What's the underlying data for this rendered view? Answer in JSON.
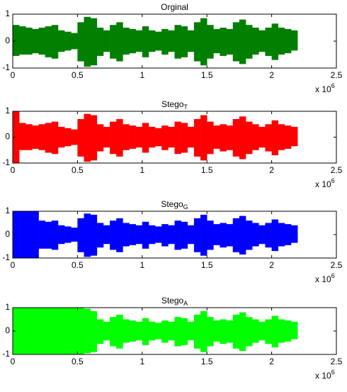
{
  "chart_data": [
    {
      "type": "waveform",
      "title": "Orginal",
      "color": "#007f00",
      "x": [
        0,
        0.05,
        0.1,
        0.15,
        0.2,
        0.25,
        0.3,
        0.35,
        0.4,
        0.45,
        0.5,
        0.55,
        0.6,
        0.65,
        0.7,
        0.75,
        0.8,
        0.85,
        0.9,
        0.95,
        1,
        1.05,
        1.1,
        1.15,
        1.2,
        1.25,
        1.3,
        1.35,
        1.4,
        1.45,
        1.5,
        1.55,
        1.6,
        1.65,
        1.7,
        1.75,
        1.8,
        1.85,
        1.9,
        1.95,
        2,
        2.05,
        2.1,
        2.15
      ],
      "upper": [
        0.6,
        0.55,
        0.5,
        0.45,
        0.5,
        0.55,
        0.6,
        0.4,
        0.35,
        0.3,
        0.7,
        0.9,
        0.85,
        0.5,
        0.4,
        0.6,
        0.7,
        0.5,
        0.45,
        0.4,
        0.55,
        0.4,
        0.35,
        0.45,
        0.4,
        0.6,
        0.55,
        0.4,
        0.7,
        0.85,
        0.6,
        0.45,
        0.5,
        0.45,
        0.7,
        0.8,
        0.6,
        0.5,
        0.4,
        0.5,
        0.65,
        0.5,
        0.45,
        0.4
      ],
      "lower": [
        -0.55,
        -0.5,
        -0.5,
        -0.45,
        -0.5,
        -0.6,
        -0.65,
        -0.4,
        -0.35,
        -0.3,
        -0.75,
        -0.95,
        -0.9,
        -0.55,
        -0.4,
        -0.65,
        -0.75,
        -0.5,
        -0.45,
        -0.4,
        -0.6,
        -0.4,
        -0.35,
        -0.5,
        -0.4,
        -0.65,
        -0.6,
        -0.4,
        -0.75,
        -0.9,
        -0.65,
        -0.45,
        -0.55,
        -0.5,
        -0.75,
        -0.85,
        -0.65,
        -0.5,
        -0.4,
        -0.55,
        -0.7,
        -0.5,
        -0.45,
        -0.35
      ],
      "xlim": [
        0,
        2.5
      ],
      "xticks": [
        0,
        0.5,
        1,
        1.5,
        2,
        2.5
      ],
      "ylim": [
        -1,
        1
      ],
      "yticks": [
        -1,
        0,
        1
      ],
      "x_multiplier": "x 10",
      "x_multiplier_exponent": "6"
    },
    {
      "type": "waveform",
      "title": "Stego",
      "title_subscript": "T",
      "color": "#ff0000",
      "x": [
        0,
        0.05,
        0.1,
        0.15,
        0.2,
        0.25,
        0.3,
        0.35,
        0.4,
        0.45,
        0.5,
        0.55,
        0.6,
        0.65,
        0.7,
        0.75,
        0.8,
        0.85,
        0.9,
        0.95,
        1,
        1.05,
        1.1,
        1.15,
        1.2,
        1.25,
        1.3,
        1.35,
        1.4,
        1.45,
        1.5,
        1.55,
        1.6,
        1.65,
        1.7,
        1.75,
        1.8,
        1.85,
        1.9,
        1.95,
        2,
        2.05,
        2.1,
        2.15
      ],
      "upper": [
        1,
        0.55,
        0.5,
        0.45,
        0.5,
        0.55,
        0.6,
        0.4,
        0.35,
        0.3,
        0.7,
        0.9,
        0.85,
        0.5,
        0.4,
        0.6,
        0.7,
        0.5,
        0.45,
        0.4,
        0.55,
        0.4,
        0.35,
        0.45,
        0.4,
        0.6,
        0.55,
        0.4,
        0.7,
        0.85,
        0.6,
        0.45,
        0.5,
        0.45,
        0.7,
        0.8,
        0.6,
        0.5,
        0.4,
        0.5,
        0.65,
        0.5,
        0.45,
        0.4
      ],
      "lower": [
        -1,
        -0.5,
        -0.5,
        -0.45,
        -0.5,
        -0.6,
        -0.65,
        -0.4,
        -0.35,
        -0.3,
        -0.75,
        -0.95,
        -0.9,
        -0.55,
        -0.4,
        -0.65,
        -0.75,
        -0.5,
        -0.45,
        -0.4,
        -0.6,
        -0.4,
        -0.35,
        -0.5,
        -0.4,
        -0.65,
        -0.6,
        -0.4,
        -0.75,
        -0.9,
        -0.65,
        -0.45,
        -0.55,
        -0.5,
        -0.75,
        -0.85,
        -0.65,
        -0.5,
        -0.4,
        -0.55,
        -0.7,
        -0.5,
        -0.45,
        -0.35
      ],
      "xlim": [
        0,
        2.5
      ],
      "xticks": [
        0,
        0.5,
        1,
        1.5,
        2,
        2.5
      ],
      "ylim": [
        -1,
        1
      ],
      "yticks": [
        -1,
        0,
        1
      ],
      "x_multiplier": "x 10",
      "x_multiplier_exponent": "6"
    },
    {
      "type": "waveform",
      "title": "Stego",
      "title_subscript": "G",
      "color": "#0000ff",
      "x": [
        0,
        0.05,
        0.1,
        0.15,
        0.2,
        0.25,
        0.3,
        0.35,
        0.4,
        0.45,
        0.5,
        0.55,
        0.6,
        0.65,
        0.7,
        0.75,
        0.8,
        0.85,
        0.9,
        0.95,
        1,
        1.05,
        1.1,
        1.15,
        1.2,
        1.25,
        1.3,
        1.35,
        1.4,
        1.45,
        1.5,
        1.55,
        1.6,
        1.65,
        1.7,
        1.75,
        1.8,
        1.85,
        1.9,
        1.95,
        2,
        2.05,
        2.1,
        2.15
      ],
      "upper": [
        1,
        1,
        1,
        1,
        0.6,
        0.55,
        0.6,
        0.4,
        0.35,
        0.3,
        0.7,
        0.9,
        0.85,
        0.5,
        0.4,
        0.6,
        0.7,
        0.5,
        0.45,
        0.4,
        0.55,
        0.4,
        0.35,
        0.45,
        0.4,
        0.6,
        0.55,
        0.4,
        0.7,
        0.85,
        0.6,
        0.45,
        0.5,
        0.45,
        0.7,
        0.8,
        0.6,
        0.5,
        0.4,
        0.5,
        0.65,
        0.5,
        0.45,
        0.4
      ],
      "lower": [
        -1,
        -1,
        -1,
        -1,
        -0.6,
        -0.6,
        -0.65,
        -0.4,
        -0.35,
        -0.3,
        -0.75,
        -0.95,
        -0.9,
        -0.55,
        -0.4,
        -0.65,
        -0.75,
        -0.5,
        -0.45,
        -0.4,
        -0.6,
        -0.4,
        -0.35,
        -0.5,
        -0.4,
        -0.65,
        -0.6,
        -0.4,
        -0.75,
        -0.9,
        -0.65,
        -0.45,
        -0.55,
        -0.5,
        -0.75,
        -0.85,
        -0.65,
        -0.5,
        -0.4,
        -0.55,
        -0.7,
        -0.5,
        -0.45,
        -0.35
      ],
      "xlim": [
        0,
        2.5
      ],
      "xticks": [
        0,
        0.5,
        1,
        1.5,
        2,
        2.5
      ],
      "ylim": [
        -1,
        1
      ],
      "yticks": [
        -1,
        0,
        1
      ],
      "x_multiplier": "x 10",
      "x_multiplier_exponent": "6"
    },
    {
      "type": "waveform",
      "title": "Stego",
      "title_subscript": "A",
      "color": "#00ff00",
      "x": [
        0,
        0.05,
        0.1,
        0.15,
        0.2,
        0.25,
        0.3,
        0.35,
        0.4,
        0.45,
        0.5,
        0.55,
        0.6,
        0.65,
        0.7,
        0.75,
        0.8,
        0.85,
        0.9,
        0.95,
        1,
        1.05,
        1.1,
        1.15,
        1.2,
        1.25,
        1.3,
        1.35,
        1.4,
        1.45,
        1.5,
        1.55,
        1.6,
        1.65,
        1.7,
        1.75,
        1.8,
        1.85,
        1.9,
        1.95,
        2,
        2.05,
        2.1,
        2.15
      ],
      "upper": [
        1,
        1,
        1,
        1,
        1,
        1,
        1,
        1,
        1,
        1,
        1,
        0.95,
        0.85,
        0.5,
        0.4,
        0.6,
        0.7,
        0.5,
        0.45,
        0.4,
        0.55,
        0.4,
        0.35,
        0.45,
        0.4,
        0.6,
        0.55,
        0.4,
        0.7,
        0.85,
        0.6,
        0.45,
        0.5,
        0.45,
        0.7,
        0.8,
        0.6,
        0.5,
        0.4,
        0.5,
        0.65,
        0.5,
        0.45,
        0.4
      ],
      "lower": [
        -1,
        -1,
        -1,
        -1,
        -1,
        -1,
        -1,
        -1,
        -1,
        -1,
        -1,
        -0.95,
        -0.9,
        -0.55,
        -0.4,
        -0.65,
        -0.75,
        -0.5,
        -0.45,
        -0.4,
        -0.6,
        -0.4,
        -0.35,
        -0.5,
        -0.4,
        -0.65,
        -0.6,
        -0.4,
        -0.75,
        -0.9,
        -0.65,
        -0.45,
        -0.55,
        -0.5,
        -0.75,
        -0.85,
        -0.65,
        -0.5,
        -0.4,
        -0.55,
        -0.7,
        -0.5,
        -0.45,
        -0.35
      ],
      "xlim": [
        0,
        2.5
      ],
      "xticks": [
        0,
        0.5,
        1,
        1.5,
        2,
        2.5
      ],
      "ylim": [
        -1,
        1
      ],
      "yticks": [
        -1,
        0,
        1
      ],
      "x_multiplier": "x 10",
      "x_multiplier_exponent": "6"
    }
  ]
}
